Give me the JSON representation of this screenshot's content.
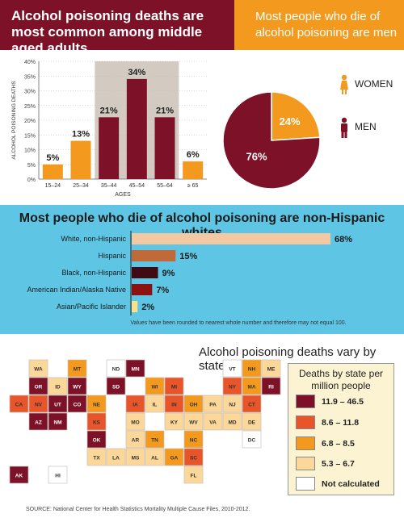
{
  "headers": {
    "left_title": "Alcohol poisoning deaths are most common among middle aged adults",
    "right_title": "Most people who die of alcohol poisoning are men"
  },
  "colors": {
    "maroon": "#7d1128",
    "orange": "#f39a1e",
    "light_blue": "#5ec6e4",
    "highlight": "#d3cbc2",
    "tan": "#f3c9a4",
    "copper": "#bf6a38",
    "dark_brown": "#3e0c12",
    "dark_red": "#8c1212",
    "pale_yellow": "#fde18a"
  },
  "chart_data": [
    {
      "type": "bar",
      "title": "Alcohol poisoning deaths are most common among middle aged adults",
      "categories": [
        "15–24",
        "25–34",
        "35–44",
        "45–54",
        "55–64",
        "≥ 65"
      ],
      "values": [
        5,
        13,
        21,
        34,
        21,
        6
      ],
      "value_labels": [
        "5%",
        "13%",
        "21%",
        "34%",
        "21%",
        "6%"
      ],
      "highlighted": [
        false,
        false,
        true,
        true,
        true,
        false
      ],
      "ylabel": "ALCOHOL POISONING DEATHS",
      "xlabel": "AGES",
      "ylim": [
        0,
        40
      ],
      "yticks": [
        "0%",
        "5%",
        "10%",
        "15%",
        "20%",
        "25%",
        "30%",
        "35%",
        "40%"
      ]
    },
    {
      "type": "pie",
      "title": "Most people who die of alcohol poisoning are men",
      "categories": [
        "WOMEN",
        "MEN"
      ],
      "values": [
        24,
        76
      ],
      "value_labels": [
        "24%",
        "76%"
      ]
    },
    {
      "type": "bar",
      "orientation": "horizontal",
      "title": "Most people who die of alcohol poisoning are non-Hispanic whites",
      "categories": [
        "White, non-Hispanic",
        "Hispanic",
        "Black, non-Hispanic",
        "American Indian/Alaska Native",
        "Asian/Pacific Islander"
      ],
      "values": [
        68,
        15,
        9,
        7,
        2
      ],
      "value_labels": [
        "68%",
        "15%",
        "9%",
        "7%",
        "2%"
      ],
      "note": "Values have been rounded to nearest whole number and therefore may not equal 100."
    }
  ],
  "map": {
    "title": "Alcohol poisoning deaths vary by state",
    "legend_title": "Deaths by state per million people",
    "legend": [
      {
        "label": "11.9 – 46.5",
        "color": "#7d1128"
      },
      {
        "label": "8.6 – 11.8",
        "color": "#e8552a"
      },
      {
        "label": "6.8 – 8.5",
        "color": "#f39a1e"
      },
      {
        "label": "5.3 – 6.7",
        "color": "#fbd79a"
      },
      {
        "label": "Not calculated",
        "color": "#ffffff"
      }
    ],
    "states": [
      {
        "abbr": "WA",
        "cls": 3
      },
      {
        "abbr": "OR",
        "cls": 0
      },
      {
        "abbr": "CA",
        "cls": 1
      },
      {
        "abbr": "NV",
        "cls": 1
      },
      {
        "abbr": "ID",
        "cls": 3
      },
      {
        "abbr": "MT",
        "cls": 2
      },
      {
        "abbr": "WY",
        "cls": 0
      },
      {
        "abbr": "UT",
        "cls": 0
      },
      {
        "abbr": "AZ",
        "cls": 0
      },
      {
        "abbr": "CO",
        "cls": 0
      },
      {
        "abbr": "NM",
        "cls": 0
      },
      {
        "abbr": "ND",
        "cls": 4
      },
      {
        "abbr": "SD",
        "cls": 0
      },
      {
        "abbr": "NE",
        "cls": 2
      },
      {
        "abbr": "KS",
        "cls": 1
      },
      {
        "abbr": "OK",
        "cls": 0
      },
      {
        "abbr": "TX",
        "cls": 3
      },
      {
        "abbr": "MN",
        "cls": 0
      },
      {
        "abbr": "IA",
        "cls": 1
      },
      {
        "abbr": "MO",
        "cls": 3
      },
      {
        "abbr": "AR",
        "cls": 3
      },
      {
        "abbr": "LA",
        "cls": 3
      },
      {
        "abbr": "WI",
        "cls": 2
      },
      {
        "abbr": "IL",
        "cls": 3
      },
      {
        "abbr": "MS",
        "cls": 3
      },
      {
        "abbr": "MI",
        "cls": 1
      },
      {
        "abbr": "IN",
        "cls": 1
      },
      {
        "abbr": "KY",
        "cls": 3
      },
      {
        "abbr": "TN",
        "cls": 2
      },
      {
        "abbr": "AL",
        "cls": 3
      },
      {
        "abbr": "OH",
        "cls": 2
      },
      {
        "abbr": "WV",
        "cls": 3
      },
      {
        "abbr": "GA",
        "cls": 2
      },
      {
        "abbr": "FL",
        "cls": 3
      },
      {
        "abbr": "SC",
        "cls": 1
      },
      {
        "abbr": "NC",
        "cls": 2
      },
      {
        "abbr": "VA",
        "cls": 3
      },
      {
        "abbr": "PA",
        "cls": 3
      },
      {
        "abbr": "NY",
        "cls": 1
      },
      {
        "abbr": "VT",
        "cls": 4
      },
      {
        "abbr": "NH",
        "cls": 2
      },
      {
        "abbr": "ME",
        "cls": 3
      },
      {
        "abbr": "MA",
        "cls": 2
      },
      {
        "abbr": "RI",
        "cls": 0
      },
      {
        "abbr": "CT",
        "cls": 1
      },
      {
        "abbr": "NJ",
        "cls": 3
      },
      {
        "abbr": "DE",
        "cls": 3
      },
      {
        "abbr": "MD",
        "cls": 3
      },
      {
        "abbr": "DC",
        "cls": 4
      },
      {
        "abbr": "AK",
        "cls": 0
      },
      {
        "abbr": "HI",
        "cls": 4
      }
    ]
  },
  "source": "SOURCE: National Center for Health Statistics Mortality Multiple Cause Files, 2010-2012."
}
